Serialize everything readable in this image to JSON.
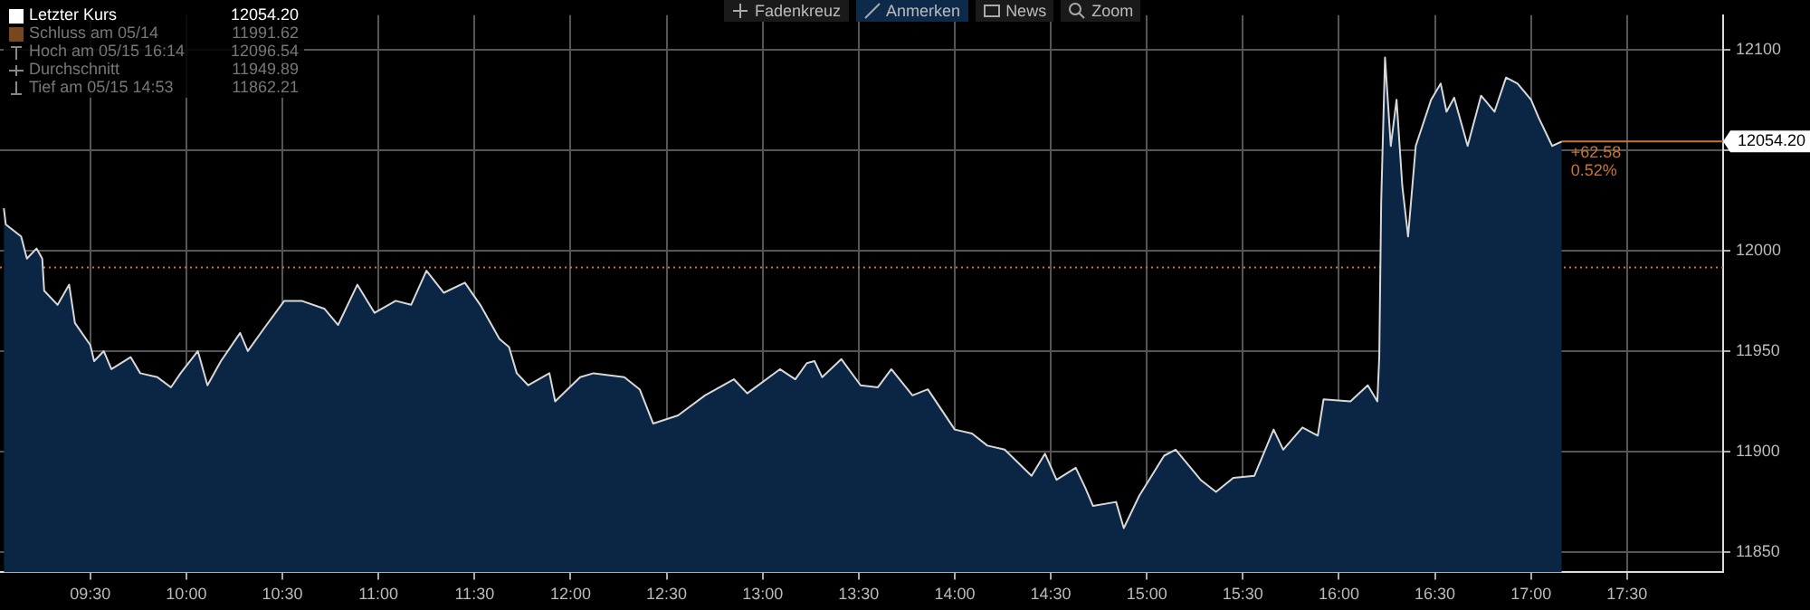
{
  "chart_data": {
    "type": "area",
    "legend": "top left",
    "grid": true,
    "line_style": "solid",
    "xlim": [
      9.03,
      18
    ],
    "xticks": [
      {
        "value": 9.5,
        "label": "09:30"
      },
      {
        "value": 10,
        "label": "10:00"
      },
      {
        "value": 10.5,
        "label": "10:30"
      },
      {
        "value": 11,
        "label": "11:00"
      },
      {
        "value": 11.5,
        "label": "11:30"
      },
      {
        "value": 12,
        "label": "12:00"
      },
      {
        "value": 12.5,
        "label": "12:30"
      },
      {
        "value": 13,
        "label": "13:00"
      },
      {
        "value": 13.5,
        "label": "13:30"
      },
      {
        "value": 14,
        "label": "14:00"
      },
      {
        "value": 14.5,
        "label": "14:30"
      },
      {
        "value": 15,
        "label": "15:00"
      },
      {
        "value": 15.5,
        "label": "15:30"
      },
      {
        "value": 16,
        "label": "16:00"
      },
      {
        "value": 16.5,
        "label": "16:30"
      },
      {
        "value": 17,
        "label": "17:00"
      },
      {
        "value": 17.5,
        "label": "17:30"
      }
    ],
    "ylim": [
      11840,
      12117
    ],
    "yticks": [
      11850,
      11900,
      11950,
      12000,
      {
        "value": 12050,
        "label": null
      },
      12100
    ],
    "series": [
      {
        "name": "Letzter Kurs",
        "color": "#0b2545",
        "x": [
          9.05,
          9.06,
          9.14,
          9.17,
          9.22,
          9.25,
          9.26,
          9.33,
          9.39,
          9.42,
          9.5,
          9.52,
          9.57,
          9.61,
          9.71,
          9.76,
          9.85,
          9.92,
          9.97,
          10.06,
          10.11,
          10.18,
          10.28,
          10.32,
          10.41,
          10.51,
          10.6,
          10.72,
          10.79,
          10.89,
          10.98,
          11.09,
          11.17,
          11.25,
          11.34,
          11.45,
          11.53,
          11.63,
          11.68,
          11.72,
          11.78,
          11.89,
          11.92,
          12.05,
          12.12,
          12.28,
          12.36,
          12.43,
          12.56,
          12.7,
          12.85,
          12.92,
          13.09,
          13.17,
          13.23,
          13.27,
          13.31,
          13.41,
          13.51,
          13.6,
          13.67,
          13.78,
          13.86,
          14,
          14.09,
          14.17,
          14.26,
          14.4,
          14.47,
          14.53,
          14.63,
          14.68,
          14.72,
          14.84,
          14.88,
          14.96,
          15.09,
          15.15,
          15.28,
          15.36,
          15.45,
          15.56,
          15.66,
          15.71,
          15.81,
          15.89,
          15.92,
          16.06,
          16.15,
          16.2,
          16.21,
          16.22,
          16.24,
          16.27,
          16.3,
          16.33,
          16.36,
          16.4,
          16.48,
          16.53,
          16.56,
          16.6,
          16.67,
          16.74,
          16.81,
          16.87,
          16.93,
          17,
          17.04,
          17.11,
          17.16
        ],
        "values": [
          12021,
          12013,
          12007,
          11996,
          12001,
          11996,
          11980,
          11973,
          11983,
          11964,
          11953,
          11945,
          11950,
          11941,
          11947,
          11939,
          11937,
          11932,
          11939,
          11950,
          11933,
          11945,
          11959,
          11950,
          11962,
          11975,
          11975,
          11971,
          11963,
          11983,
          11969,
          11975,
          11973,
          11990,
          11979,
          11984,
          11973,
          11956,
          11952,
          11939,
          11933,
          11939,
          11925,
          11937,
          11939,
          11937,
          11931,
          11914,
          11918,
          11928,
          11936,
          11929,
          11941,
          11936,
          11944,
          11945,
          11937,
          11946,
          11933,
          11932,
          11941,
          11928,
          11931,
          11911,
          11909,
          11903,
          11901,
          11888,
          11899,
          11886,
          11892,
          11882,
          11873,
          11875,
          11862,
          11878,
          11898,
          11901,
          11886,
          11880,
          11887,
          11888,
          11911,
          11901,
          11912,
          11908,
          11926,
          11925,
          11933,
          11925,
          11947,
          12024,
          12096,
          12052,
          12075,
          12032,
          12007,
          12052,
          12075,
          12083,
          12069,
          12076,
          12052,
          12077,
          12069,
          12086,
          12083,
          12075,
          12066,
          12052,
          12054.2
        ]
      }
    ],
    "ref_lines": [
      {
        "axis": "y",
        "value": 11991.62,
        "label": "Schluss am 05/14",
        "color": "#c87533",
        "line_style": "dotted"
      },
      {
        "axis": "y",
        "value": 12054.2,
        "label": "12054.20",
        "color": "#c87533",
        "line_style": "solid"
      }
    ],
    "annotations": [
      "12054.20",
      "11991.62",
      "Hoch am 05/15 16:14",
      "12096.54",
      "Durchschnitt",
      "11949.89",
      "Tief am 05/15 14:53",
      "11862.21",
      "+62.58",
      "0.52%",
      "Fadenkreuz",
      "Anmerken",
      "News",
      "Zoom"
    ]
  }
}
